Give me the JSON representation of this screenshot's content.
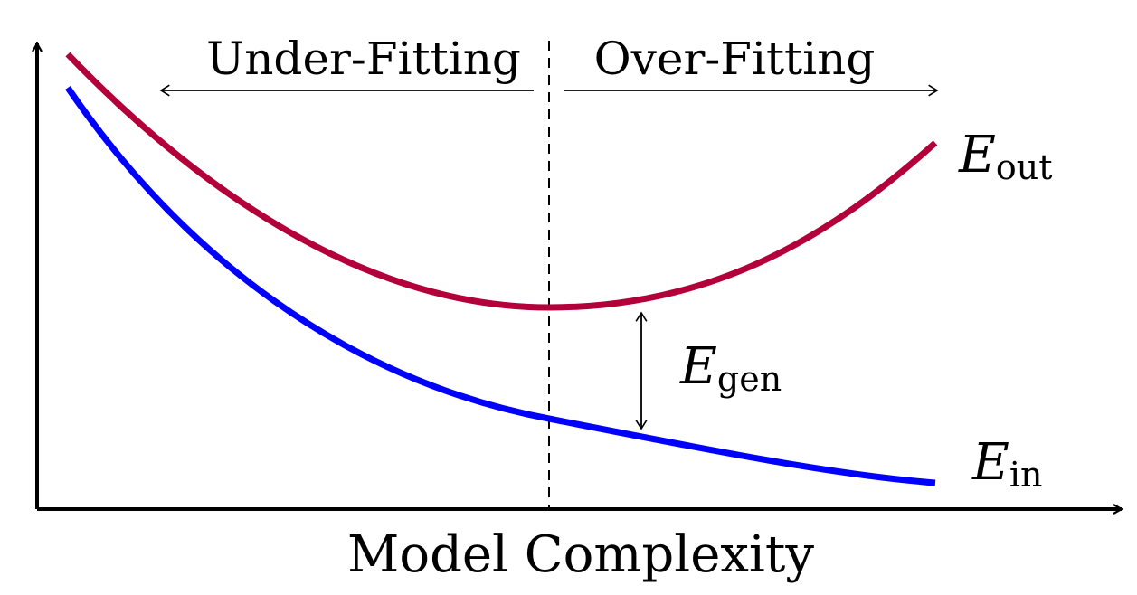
{
  "regions": {
    "left_label": "Under-Fitting",
    "right_label": "Over-Fitting"
  },
  "axes": {
    "x_label": "Model Complexity"
  },
  "curves": {
    "out": {
      "symbol": "E",
      "subscript": "out",
      "color": "#b3003b"
    },
    "in": {
      "symbol": "E",
      "subscript": "in",
      "color": "#0000ff"
    }
  },
  "gap": {
    "symbol": "E",
    "subscript": "gen"
  }
}
